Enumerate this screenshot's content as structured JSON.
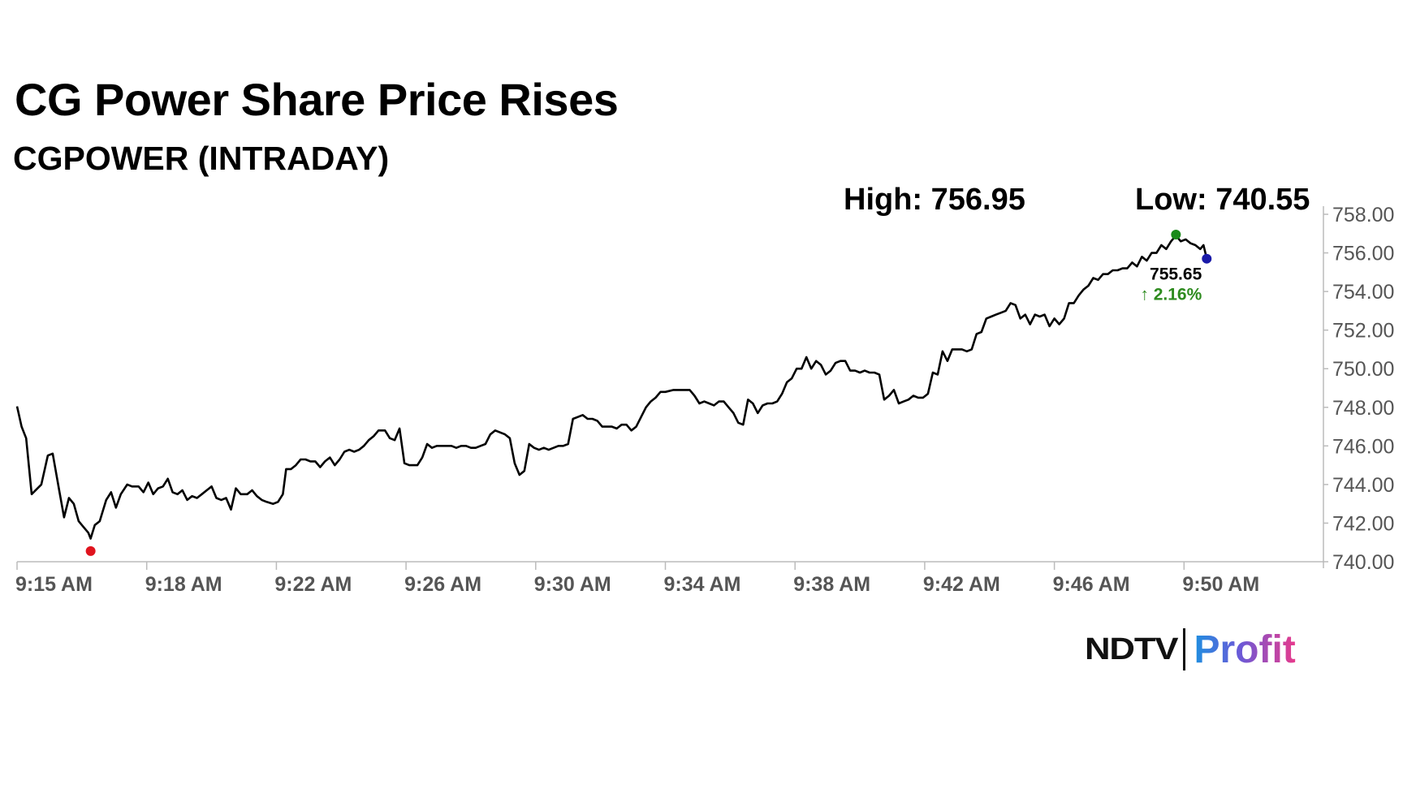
{
  "header": {
    "title": "CG Power Share Price Rises",
    "subtitle": "CGPOWER (INTRADAY)"
  },
  "stats": {
    "high_text": "High: 756.95",
    "low_text": "Low: 740.55"
  },
  "last": {
    "price": "755.65",
    "change": "↑ 2.16%"
  },
  "logo": {
    "left": "NDTV",
    "right": "Profit"
  },
  "colors": {
    "line": "#000000",
    "high_marker": "#1a8a1a",
    "low_marker": "#e0141e",
    "last_marker": "#1a1aa8",
    "change_up": "#2e8b1f",
    "axis": "#bbbbbb",
    "tick_text": "#555555"
  },
  "chart_data": {
    "type": "line",
    "title": "CG Power Share Price Rises",
    "subtitle": "CGPOWER (INTRADAY)",
    "x_unit": "minutes after 9:15 AM",
    "ylim": [
      740,
      758
    ],
    "y_ticks": [
      "740.00",
      "742.00",
      "744.00",
      "746.00",
      "748.00",
      "750.00",
      "752.00",
      "754.00",
      "756.00",
      "758.00"
    ],
    "y_tick_values": [
      740,
      742,
      744,
      746,
      748,
      750,
      752,
      754,
      756,
      758
    ],
    "x_ticks": [
      {
        "label": "9:15 AM",
        "t": 0
      },
      {
        "label": "9:18 AM",
        "t": 4
      },
      {
        "label": "9:22 AM",
        "t": 8
      },
      {
        "label": "9:26 AM",
        "t": 12
      },
      {
        "label": "9:30 AM",
        "t": 16
      },
      {
        "label": "9:34 AM",
        "t": 20
      },
      {
        "label": "9:38 AM",
        "t": 24
      },
      {
        "label": "9:42 AM",
        "t": 28
      },
      {
        "label": "9:46 AM",
        "t": 32
      },
      {
        "label": "9:50 AM",
        "t": 36
      }
    ],
    "x_range": [
      0,
      40.2
    ],
    "series": [
      {
        "values": [
          [
            0.0,
            748.05
          ],
          [
            0.14,
            747.0
          ],
          [
            0.28,
            746.4
          ],
          [
            0.45,
            743.5
          ],
          [
            0.75,
            744.0
          ],
          [
            0.95,
            745.5
          ],
          [
            1.1,
            745.6
          ],
          [
            1.3,
            743.7
          ],
          [
            1.45,
            742.3
          ],
          [
            1.6,
            743.3
          ],
          [
            1.75,
            743.0
          ],
          [
            1.9,
            742.1
          ],
          [
            2.05,
            741.8
          ],
          [
            2.2,
            741.5
          ],
          [
            2.27,
            741.2
          ],
          [
            2.4,
            741.9
          ],
          [
            2.55,
            742.1
          ],
          [
            2.75,
            743.2
          ],
          [
            2.9,
            743.6
          ],
          [
            3.05,
            742.8
          ],
          [
            3.2,
            743.5
          ],
          [
            3.4,
            744.0
          ],
          [
            3.55,
            743.9
          ],
          [
            3.75,
            743.9
          ],
          [
            3.9,
            743.6
          ],
          [
            4.05,
            744.1
          ],
          [
            4.2,
            743.5
          ],
          [
            4.35,
            743.8
          ],
          [
            4.5,
            743.9
          ],
          [
            4.65,
            744.3
          ],
          [
            4.8,
            743.6
          ],
          [
            4.95,
            743.5
          ],
          [
            5.1,
            743.7
          ],
          [
            5.25,
            743.2
          ],
          [
            5.4,
            743.4
          ],
          [
            5.55,
            743.3
          ],
          [
            5.7,
            743.5
          ],
          [
            5.85,
            743.7
          ],
          [
            6.0,
            743.9
          ],
          [
            6.15,
            743.3
          ],
          [
            6.3,
            743.2
          ],
          [
            6.45,
            743.3
          ],
          [
            6.6,
            742.7
          ],
          [
            6.75,
            743.8
          ],
          [
            6.9,
            743.5
          ],
          [
            7.1,
            743.5
          ],
          [
            7.25,
            743.7
          ],
          [
            7.4,
            743.4
          ],
          [
            7.55,
            743.2
          ],
          [
            7.7,
            743.1
          ],
          [
            7.9,
            743.0
          ],
          [
            8.05,
            743.1
          ],
          [
            8.2,
            743.5
          ],
          [
            8.3,
            744.8
          ],
          [
            8.45,
            744.8
          ],
          [
            8.6,
            745.0
          ],
          [
            8.75,
            745.3
          ],
          [
            8.9,
            745.3
          ],
          [
            9.05,
            745.2
          ],
          [
            9.2,
            745.2
          ],
          [
            9.35,
            744.9
          ],
          [
            9.5,
            745.2
          ],
          [
            9.65,
            745.4
          ],
          [
            9.8,
            745.0
          ],
          [
            9.95,
            745.3
          ],
          [
            10.1,
            745.7
          ],
          [
            10.25,
            745.8
          ],
          [
            10.4,
            745.7
          ],
          [
            10.55,
            745.8
          ],
          [
            10.7,
            746.0
          ],
          [
            10.85,
            746.3
          ],
          [
            11.0,
            746.5
          ],
          [
            11.15,
            746.8
          ],
          [
            11.35,
            746.8
          ],
          [
            11.5,
            746.4
          ],
          [
            11.65,
            746.3
          ],
          [
            11.8,
            746.9
          ],
          [
            11.95,
            745.1
          ],
          [
            12.1,
            745.0
          ],
          [
            12.35,
            745.0
          ],
          [
            12.5,
            745.4
          ],
          [
            12.65,
            746.1
          ],
          [
            12.8,
            745.9
          ],
          [
            12.95,
            746.0
          ],
          [
            13.1,
            746.0
          ],
          [
            13.25,
            746.0
          ],
          [
            13.4,
            746.0
          ],
          [
            13.55,
            745.9
          ],
          [
            13.7,
            746.0
          ],
          [
            13.85,
            746.0
          ],
          [
            14.0,
            745.9
          ],
          [
            14.15,
            745.9
          ],
          [
            14.3,
            746.0
          ],
          [
            14.45,
            746.1
          ],
          [
            14.6,
            746.6
          ],
          [
            14.75,
            746.8
          ],
          [
            14.9,
            746.7
          ],
          [
            15.05,
            746.6
          ],
          [
            15.2,
            746.4
          ],
          [
            15.35,
            745.1
          ],
          [
            15.5,
            744.5
          ],
          [
            15.65,
            744.7
          ],
          [
            15.8,
            746.1
          ],
          [
            15.95,
            745.9
          ],
          [
            16.1,
            745.8
          ],
          [
            16.25,
            745.9
          ],
          [
            16.4,
            745.8
          ],
          [
            16.55,
            745.9
          ],
          [
            16.7,
            746.0
          ],
          [
            16.85,
            746.0
          ],
          [
            17.0,
            746.1
          ],
          [
            17.15,
            747.4
          ],
          [
            17.3,
            747.5
          ],
          [
            17.45,
            747.6
          ],
          [
            17.6,
            747.4
          ],
          [
            17.75,
            747.4
          ],
          [
            17.9,
            747.3
          ],
          [
            18.05,
            747.0
          ],
          [
            18.2,
            747.0
          ],
          [
            18.35,
            747.0
          ],
          [
            18.5,
            746.9
          ],
          [
            18.65,
            747.1
          ],
          [
            18.8,
            747.1
          ],
          [
            18.95,
            746.8
          ],
          [
            19.1,
            747.0
          ],
          [
            19.25,
            747.5
          ],
          [
            19.4,
            748.0
          ],
          [
            19.55,
            748.3
          ],
          [
            19.7,
            748.5
          ],
          [
            19.85,
            748.8
          ],
          [
            20.0,
            748.8
          ],
          [
            20.25,
            748.9
          ],
          [
            20.5,
            748.9
          ],
          [
            20.75,
            748.9
          ],
          [
            20.9,
            748.6
          ],
          [
            21.05,
            748.2
          ],
          [
            21.2,
            748.3
          ],
          [
            21.35,
            748.2
          ],
          [
            21.5,
            748.1
          ],
          [
            21.65,
            748.3
          ],
          [
            21.8,
            748.3
          ],
          [
            21.95,
            748.0
          ],
          [
            22.1,
            747.7
          ],
          [
            22.25,
            747.2
          ],
          [
            22.4,
            747.1
          ],
          [
            22.55,
            748.4
          ],
          [
            22.7,
            748.2
          ],
          [
            22.85,
            747.7
          ],
          [
            23.0,
            748.1
          ],
          [
            23.15,
            748.2
          ],
          [
            23.3,
            748.2
          ],
          [
            23.45,
            748.3
          ],
          [
            23.6,
            748.7
          ],
          [
            23.75,
            749.3
          ],
          [
            23.9,
            749.5
          ],
          [
            24.05,
            750.0
          ],
          [
            24.2,
            750.0
          ],
          [
            24.35,
            750.6
          ],
          [
            24.5,
            750.0
          ],
          [
            24.65,
            750.4
          ],
          [
            24.8,
            750.2
          ],
          [
            24.95,
            749.7
          ],
          [
            25.1,
            749.9
          ],
          [
            25.25,
            750.3
          ],
          [
            25.4,
            750.4
          ],
          [
            25.55,
            750.4
          ],
          [
            25.7,
            749.9
          ],
          [
            25.85,
            749.9
          ],
          [
            26.0,
            749.8
          ],
          [
            26.15,
            749.9
          ],
          [
            26.3,
            749.8
          ],
          [
            26.45,
            749.8
          ],
          [
            26.6,
            749.7
          ],
          [
            26.75,
            748.4
          ],
          [
            26.9,
            748.6
          ],
          [
            27.05,
            748.9
          ],
          [
            27.2,
            748.2
          ],
          [
            27.35,
            748.3
          ],
          [
            27.5,
            748.4
          ],
          [
            27.65,
            748.6
          ],
          [
            27.8,
            748.5
          ],
          [
            27.95,
            748.5
          ],
          [
            28.1,
            748.7
          ],
          [
            28.25,
            749.8
          ],
          [
            28.4,
            749.7
          ],
          [
            28.55,
            750.9
          ],
          [
            28.7,
            750.4
          ],
          [
            28.85,
            751.0
          ],
          [
            29.0,
            751.0
          ],
          [
            29.15,
            751.0
          ],
          [
            29.3,
            750.9
          ],
          [
            29.45,
            751.0
          ],
          [
            29.6,
            751.8
          ],
          [
            29.75,
            751.9
          ],
          [
            29.9,
            752.6
          ],
          [
            30.05,
            752.7
          ],
          [
            30.2,
            752.8
          ],
          [
            30.35,
            752.9
          ],
          [
            30.5,
            753.0
          ],
          [
            30.65,
            753.4
          ],
          [
            30.8,
            753.3
          ],
          [
            30.95,
            752.6
          ],
          [
            31.1,
            752.8
          ],
          [
            31.25,
            752.3
          ],
          [
            31.4,
            752.8
          ],
          [
            31.55,
            752.7
          ],
          [
            31.7,
            752.8
          ],
          [
            31.85,
            752.2
          ],
          [
            32.0,
            752.6
          ],
          [
            32.15,
            752.3
          ],
          [
            32.3,
            752.6
          ],
          [
            32.45,
            753.4
          ],
          [
            32.6,
            753.4
          ],
          [
            32.75,
            753.8
          ],
          [
            32.9,
            754.1
          ],
          [
            33.05,
            754.3
          ],
          [
            33.2,
            754.7
          ],
          [
            33.35,
            754.6
          ],
          [
            33.5,
            754.9
          ],
          [
            33.65,
            754.9
          ],
          [
            33.8,
            755.1
          ],
          [
            33.95,
            755.1
          ],
          [
            34.1,
            755.2
          ],
          [
            34.25,
            755.2
          ],
          [
            34.4,
            755.5
          ],
          [
            34.55,
            755.3
          ],
          [
            34.7,
            755.8
          ],
          [
            34.85,
            755.6
          ],
          [
            35.0,
            756.0
          ],
          [
            35.15,
            756.0
          ],
          [
            35.3,
            756.4
          ],
          [
            35.45,
            756.2
          ],
          [
            35.6,
            756.6
          ],
          [
            35.75,
            756.9
          ],
          [
            35.9,
            756.6
          ],
          [
            36.05,
            756.7
          ],
          [
            36.2,
            756.5
          ],
          [
            36.35,
            756.4
          ],
          [
            36.5,
            756.2
          ],
          [
            36.6,
            756.4
          ],
          [
            36.7,
            755.7
          ]
        ]
      }
    ],
    "high": {
      "value": 756.95,
      "t": 35.75
    },
    "low": {
      "value": 740.55,
      "t": 2.27
    },
    "last": {
      "value": 755.65,
      "change_pct": 2.16
    },
    "grid": false,
    "legend": "none"
  }
}
